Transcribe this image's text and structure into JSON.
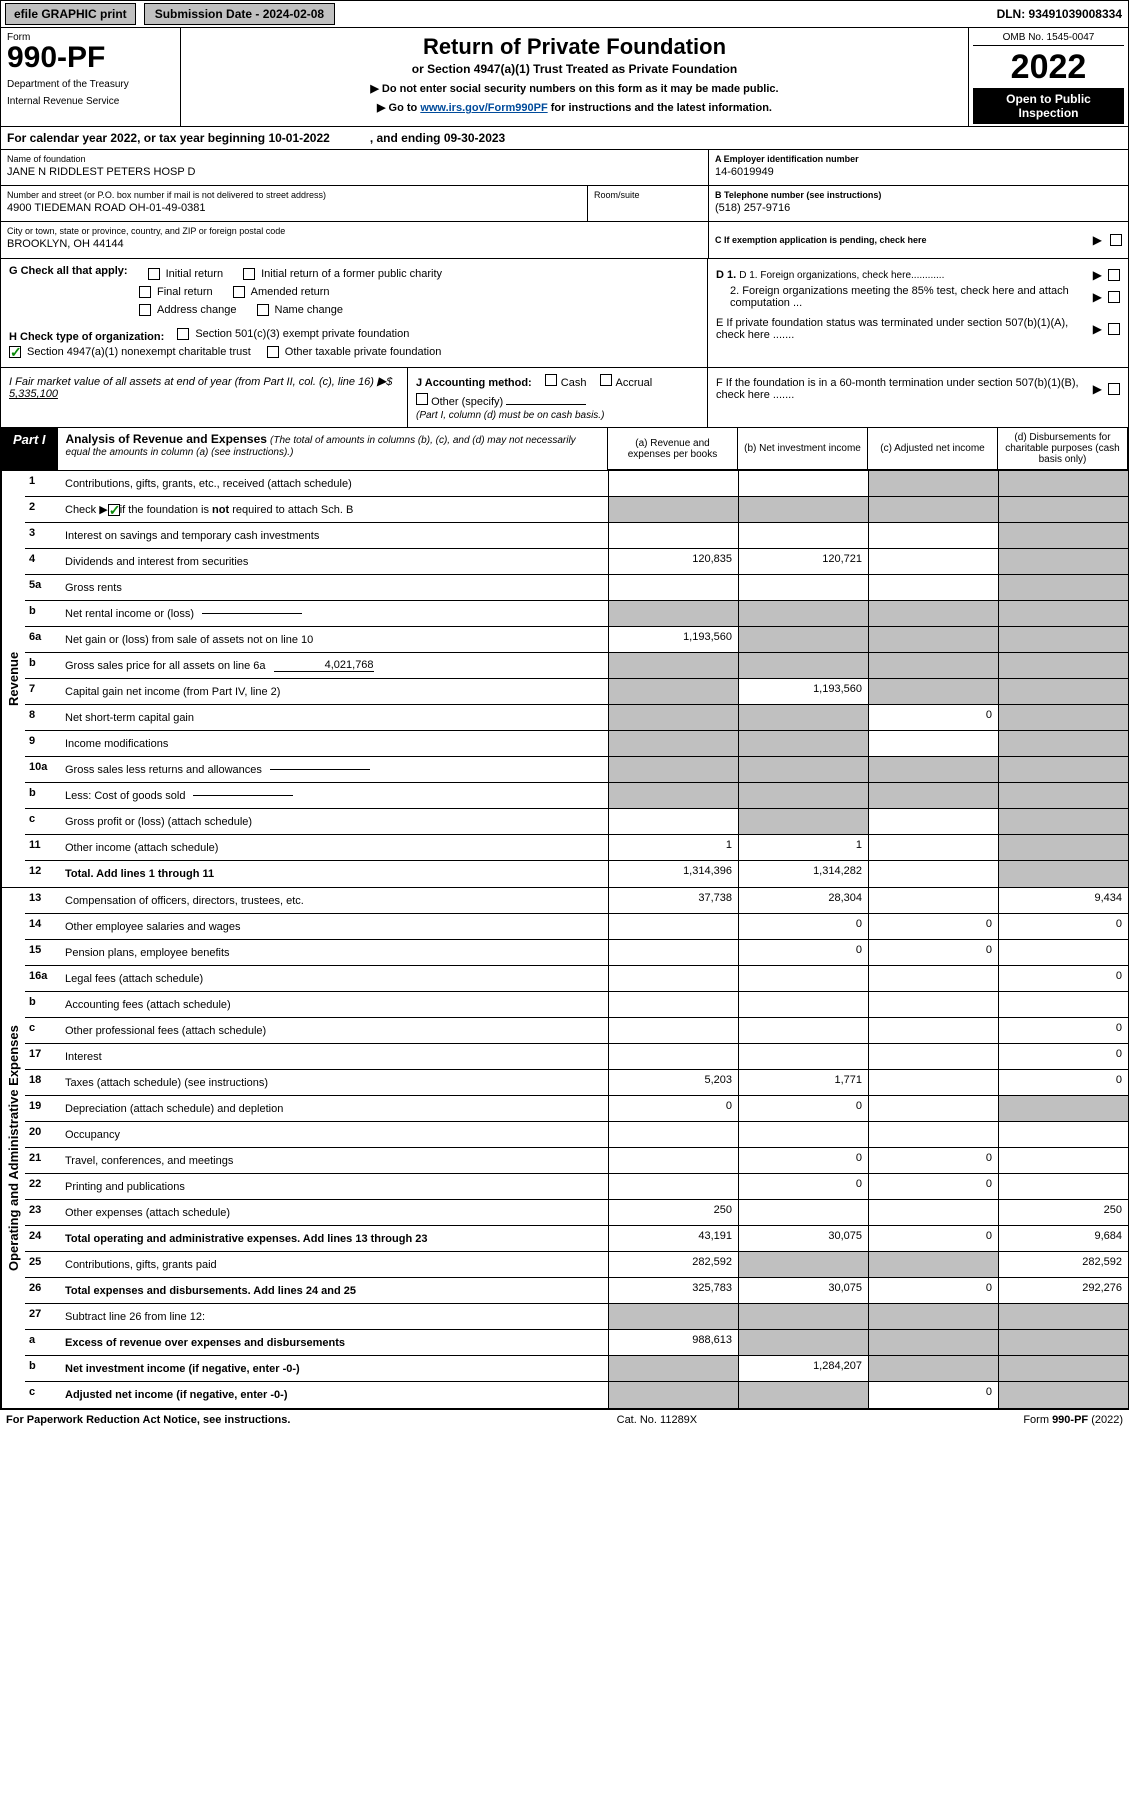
{
  "topbar": {
    "efile": "efile GRAPHIC print",
    "subdate_label": "Submission Date - 2024-02-08",
    "dln": "DLN: 93491039008334"
  },
  "header": {
    "form_label": "Form",
    "form_number": "990-PF",
    "dept1": "Department of the Treasury",
    "dept2": "Internal Revenue Service",
    "title": "Return of Private Foundation",
    "subtitle": "or Section 4947(a)(1) Trust Treated as Private Foundation",
    "instr1": "▶ Do not enter social security numbers on this form as it may be made public.",
    "instr2_pre": "▶ Go to ",
    "instr2_link_text": "www.irs.gov/Form990PF",
    "instr2_post": " for instructions and the latest information.",
    "omb": "OMB No. 1545-0047",
    "year": "2022",
    "open1": "Open to Public",
    "open2": "Inspection"
  },
  "calyear": {
    "text1": "For calendar year 2022, or tax year beginning 10-01-2022",
    "text2": ", and ending 09-30-2023"
  },
  "name_block": {
    "name_label": "Name of foundation",
    "name_value": "JANE N RIDDLEST PETERS HOSP D",
    "addr_label": "Number and street (or P.O. box number if mail is not delivered to street address)",
    "addr_value": "4900 TIEDEMAN ROAD OH-01-49-0381",
    "room_label": "Room/suite",
    "city_label": "City or town, state or province, country, and ZIP or foreign postal code",
    "city_value": "BROOKLYN, OH  44144",
    "a_label": "A Employer identification number",
    "a_value": "14-6019949",
    "b_label": "B Telephone number (see instructions)",
    "b_value": "(518) 257-9716",
    "c_label": "C If exemption application is pending, check here"
  },
  "g_section": {
    "g_label": "G Check all that apply:",
    "opts": [
      "Initial return",
      "Final return",
      "Address change",
      "Initial return of a former public charity",
      "Amended return",
      "Name change"
    ],
    "h_label": "H Check type of organization:",
    "h_opt1": "Section 501(c)(3) exempt private foundation",
    "h_opt2": "Section 4947(a)(1) nonexempt charitable trust",
    "h_opt3": "Other taxable private foundation",
    "d1": "D 1. Foreign organizations, check here............",
    "d2": "2. Foreign organizations meeting the 85% test, check here and attach computation ...",
    "e_label": "E  If private foundation status was terminated under section 507(b)(1)(A), check here .......",
    "f_label": "F  If the foundation is in a 60-month termination under section 507(b)(1)(B), check here ......."
  },
  "ij": {
    "i_label": "I Fair market value of all assets at end of year (from Part II, col. (c), line 16)",
    "i_value": "5,335,100",
    "j_label": "J Accounting method:",
    "j_cash": "Cash",
    "j_accrual": "Accrual",
    "j_other": "Other (specify)",
    "j_note": "(Part I, column (d) must be on cash basis.)"
  },
  "part1": {
    "tab": "Part I",
    "title": "Analysis of Revenue and Expenses",
    "title_sub": "(The total of amounts in columns (b), (c), and (d) may not necessarily equal the amounts in column (a) (see instructions).)",
    "col_a": "(a)  Revenue and expenses per books",
    "col_b": "(b)  Net investment income",
    "col_c": "(c)  Adjusted net income",
    "col_d": "(d)  Disbursements for charitable purposes (cash basis only)"
  },
  "revenue_label": "Revenue",
  "expenses_label": "Operating and Administrative Expenses",
  "rows": [
    {
      "n": "1",
      "desc": "Contributions, gifts, grants, etc., received (attach schedule)",
      "a": "",
      "b": "",
      "c": "s",
      "d": "s"
    },
    {
      "n": "2",
      "desc": "Check ▶ ☑ if the foundation is not required to attach Sch. B",
      "dots": true,
      "a": "s",
      "b": "s",
      "c": "s",
      "d": "s",
      "noborder": true,
      "hascheck": true
    },
    {
      "n": "3",
      "desc": "Interest on savings and temporary cash investments",
      "a": "",
      "b": "",
      "c": "",
      "d": "s"
    },
    {
      "n": "4",
      "desc": "Dividends and interest from securities",
      "dots": true,
      "a": "120,835",
      "b": "120,721",
      "c": "",
      "d": "s"
    },
    {
      "n": "5a",
      "desc": "Gross rents",
      "dots": true,
      "a": "",
      "b": "",
      "c": "",
      "d": "s"
    },
    {
      "n": "b",
      "desc": "Net rental income or (loss)",
      "inlinebox": true,
      "a": "s",
      "b": "s",
      "c": "s",
      "d": "s"
    },
    {
      "n": "6a",
      "desc": "Net gain or (loss) from sale of assets not on line 10",
      "a": "1,193,560",
      "b": "s",
      "c": "s",
      "d": "s"
    },
    {
      "n": "b",
      "desc": "Gross sales price for all assets on line 6a",
      "inlinebox": true,
      "inlineval": "4,021,768",
      "a": "s",
      "b": "s",
      "c": "s",
      "d": "s"
    },
    {
      "n": "7",
      "desc": "Capital gain net income (from Part IV, line 2)",
      "dots": true,
      "a": "s",
      "b": "1,193,560",
      "c": "s",
      "d": "s"
    },
    {
      "n": "8",
      "desc": "Net short-term capital gain",
      "dots": true,
      "a": "s",
      "b": "s",
      "c": "0",
      "d": "s"
    },
    {
      "n": "9",
      "desc": "Income modifications",
      "dots": true,
      "a": "s",
      "b": "s",
      "c": "",
      "d": "s"
    },
    {
      "n": "10a",
      "desc": "Gross sales less returns and allowances",
      "inlinebox": true,
      "a": "s",
      "b": "s",
      "c": "s",
      "d": "s"
    },
    {
      "n": "b",
      "desc": "Less: Cost of goods sold",
      "dots": true,
      "inlinebox": true,
      "a": "s",
      "b": "s",
      "c": "s",
      "d": "s"
    },
    {
      "n": "c",
      "desc": "Gross profit or (loss) (attach schedule)",
      "dots": true,
      "a": "",
      "b": "s",
      "c": "",
      "d": "s"
    },
    {
      "n": "11",
      "desc": "Other income (attach schedule)",
      "dots": true,
      "a": "1",
      "b": "1",
      "c": "",
      "d": "s"
    },
    {
      "n": "12",
      "desc": "Total. Add lines 1 through 11",
      "dots": true,
      "bold": true,
      "a": "1,314,396",
      "b": "1,314,282",
      "c": "",
      "d": "s"
    }
  ],
  "exp_rows": [
    {
      "n": "13",
      "desc": "Compensation of officers, directors, trustees, etc.",
      "a": "37,738",
      "b": "28,304",
      "c": "",
      "d": "9,434"
    },
    {
      "n": "14",
      "desc": "Other employee salaries and wages",
      "dots": true,
      "a": "",
      "b": "0",
      "c": "0",
      "d": "0"
    },
    {
      "n": "15",
      "desc": "Pension plans, employee benefits",
      "dots": true,
      "a": "",
      "b": "0",
      "c": "0",
      "d": ""
    },
    {
      "n": "16a",
      "desc": "Legal fees (attach schedule)",
      "dots": true,
      "a": "",
      "b": "",
      "c": "",
      "d": "0"
    },
    {
      "n": "b",
      "desc": "Accounting fees (attach schedule)",
      "dots": true,
      "a": "",
      "b": "",
      "c": "",
      "d": ""
    },
    {
      "n": "c",
      "desc": "Other professional fees (attach schedule)",
      "dots": true,
      "a": "",
      "b": "",
      "c": "",
      "d": "0"
    },
    {
      "n": "17",
      "desc": "Interest",
      "dots": true,
      "a": "",
      "b": "",
      "c": "",
      "d": "0"
    },
    {
      "n": "18",
      "desc": "Taxes (attach schedule) (see instructions)",
      "dots": true,
      "a": "5,203",
      "b": "1,771",
      "c": "",
      "d": "0"
    },
    {
      "n": "19",
      "desc": "Depreciation (attach schedule) and depletion",
      "dots": true,
      "a": "0",
      "b": "0",
      "c": "",
      "d": "s"
    },
    {
      "n": "20",
      "desc": "Occupancy",
      "dots": true,
      "a": "",
      "b": "",
      "c": "",
      "d": ""
    },
    {
      "n": "21",
      "desc": "Travel, conferences, and meetings",
      "dots": true,
      "a": "",
      "b": "0",
      "c": "0",
      "d": ""
    },
    {
      "n": "22",
      "desc": "Printing and publications",
      "dots": true,
      "a": "",
      "b": "0",
      "c": "0",
      "d": ""
    },
    {
      "n": "23",
      "desc": "Other expenses (attach schedule)",
      "dots": true,
      "a": "250",
      "b": "",
      "c": "",
      "d": "250"
    },
    {
      "n": "24",
      "desc": "Total operating and administrative expenses. Add lines 13 through 23",
      "dots": true,
      "bold": true,
      "a": "43,191",
      "b": "30,075",
      "c": "0",
      "d": "9,684"
    },
    {
      "n": "25",
      "desc": "Contributions, gifts, grants paid",
      "dots": true,
      "a": "282,592",
      "b": "s",
      "c": "s",
      "d": "282,592"
    },
    {
      "n": "26",
      "desc": "Total expenses and disbursements. Add lines 24 and 25",
      "bold": true,
      "a": "325,783",
      "b": "30,075",
      "c": "0",
      "d": "292,276"
    },
    {
      "n": "27",
      "desc": "Subtract line 26 from line 12:",
      "a": "s",
      "b": "s",
      "c": "s",
      "d": "s"
    },
    {
      "n": "a",
      "desc": "Excess of revenue over expenses and disbursements",
      "bold": true,
      "a": "988,613",
      "b": "s",
      "c": "s",
      "d": "s"
    },
    {
      "n": "b",
      "desc": "Net investment income (if negative, enter -0-)",
      "bold": true,
      "a": "s",
      "b": "1,284,207",
      "c": "s",
      "d": "s"
    },
    {
      "n": "c",
      "desc": "Adjusted net income (if negative, enter -0-)",
      "dots": true,
      "bold": true,
      "a": "s",
      "b": "s",
      "c": "0",
      "d": "s"
    }
  ],
  "footer": {
    "left": "For Paperwork Reduction Act Notice, see instructions.",
    "mid": "Cat. No. 11289X",
    "right": "Form 990-PF (2022)"
  },
  "colors": {
    "shaded": "#c0c0c0",
    "link": "#004b9b",
    "check_green": "#0a8a0a"
  }
}
